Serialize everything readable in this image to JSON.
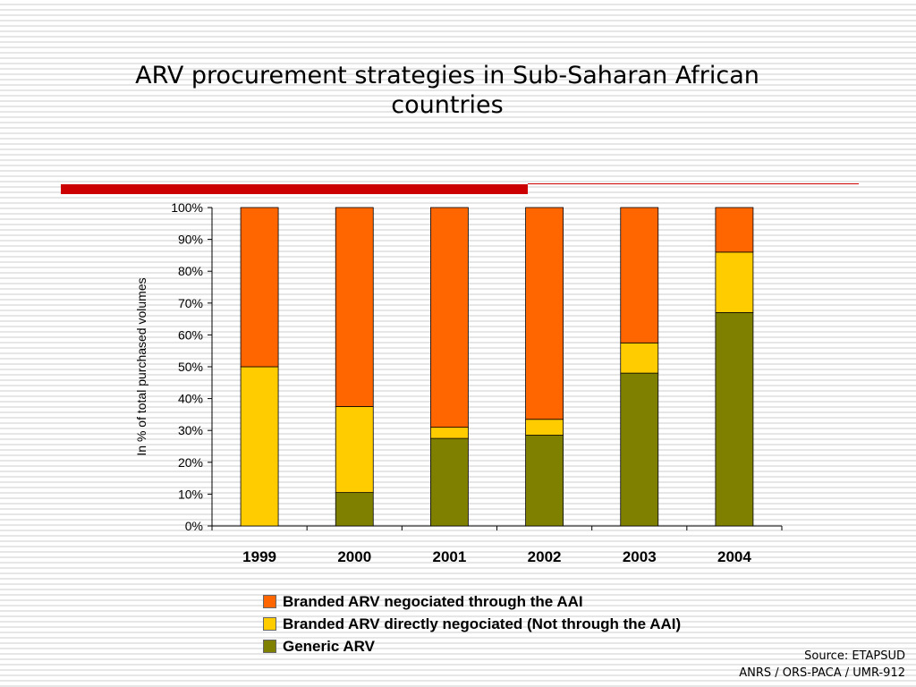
{
  "slide": {
    "title": "ARV procurement strategies in Sub-Saharan African countries",
    "source_line1": "Source: ETAPSUD",
    "source_line2": "ANRS / ORS-PACA / UMR-912"
  },
  "colors": {
    "branded_aai": "#ff6600",
    "branded_direct": "#ffcc00",
    "generic": "#808000",
    "accent_rule": "#cc0000"
  },
  "chart_data": {
    "type": "bar",
    "stacked": true,
    "title": "",
    "xlabel": "",
    "ylabel": "In % of total purchased volumes",
    "ylim": [
      0,
      100
    ],
    "ytick_labels": [
      "0%",
      "10%",
      "20%",
      "30%",
      "40%",
      "50%",
      "60%",
      "70%",
      "80%",
      "90%",
      "100%"
    ],
    "categories": [
      "1999",
      "2000",
      "2001",
      "2002",
      "2003",
      "2004"
    ],
    "legend_position": "bottom",
    "series": [
      {
        "name": "Generic ARV",
        "color": "#808000",
        "values": [
          0,
          10.5,
          27.5,
          28.5,
          48,
          67
        ]
      },
      {
        "name": "Branded ARV directly negociated (Not through the AAI)",
        "color": "#ffcc00",
        "values": [
          50,
          27,
          3.5,
          5,
          9.5,
          19
        ]
      },
      {
        "name": "Branded ARV negociated through the AAI",
        "color": "#ff6600",
        "values": [
          50,
          62.5,
          69,
          66.5,
          42.5,
          14
        ]
      }
    ],
    "legend": [
      {
        "label": "Branded ARV negociated through the AAI",
        "color": "#ff6600"
      },
      {
        "label": "Branded ARV directly negociated (Not through the AAI)",
        "color": "#ffcc00"
      },
      {
        "label": "Generic ARV",
        "color": "#808000"
      }
    ]
  }
}
